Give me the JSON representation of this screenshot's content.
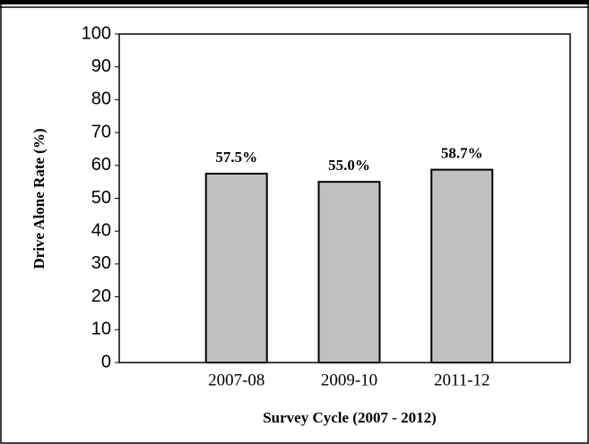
{
  "chart_data": {
    "type": "bar",
    "categories": [
      "2007-08",
      "2009-10",
      "2011-12"
    ],
    "values": [
      57.5,
      55.0,
      58.7
    ],
    "value_labels": [
      "57.5%",
      "55.0%",
      "58.7%"
    ],
    "color": "#c0c0c0",
    "ylim": [
      0,
      100
    ],
    "yticks": [
      0,
      10,
      20,
      30,
      40,
      50,
      60,
      70,
      80,
      90,
      100
    ],
    "x_label": "Survey Cycle (2007 - 2012)",
    "y_label": "Drive Alone Rate (%)",
    "grid": false
  }
}
